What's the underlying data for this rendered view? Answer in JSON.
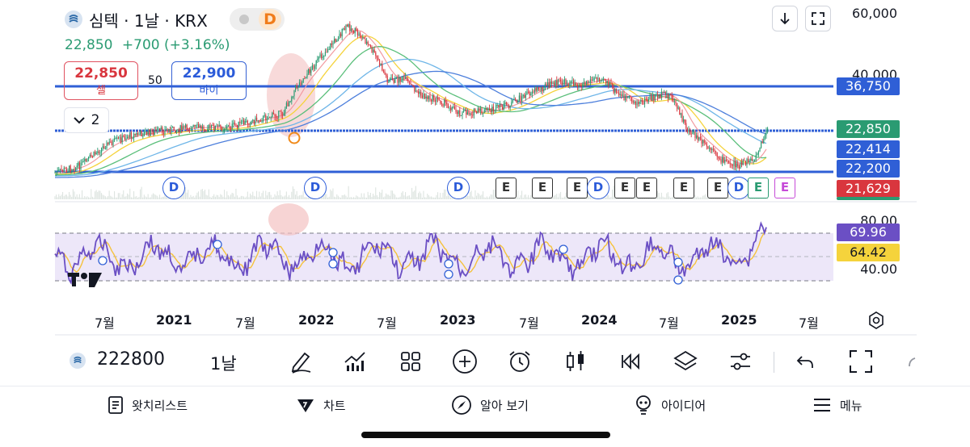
{
  "header": {
    "title": "심텍 · 1날 · KRX",
    "flag_badge": "D",
    "price": "22,850",
    "change": "+700 (+3.16%)",
    "sell_price": "22,850",
    "sell_label": "셀",
    "spread": "50",
    "buy_price": "22,900",
    "buy_label": "바이",
    "indicator_count": "2"
  },
  "price_scale": {
    "top": "60,000",
    "mid": "40,000",
    "tags": [
      {
        "label": "36,750",
        "color": "#2f5fd6"
      },
      {
        "label": "22,850",
        "color": "#2a9b72"
      },
      {
        "label": "22,414",
        "color": "#2f5fd6"
      },
      {
        "label": "22,200",
        "color": "#2f5fd6"
      },
      {
        "label": "21,629",
        "color": "#d9363e"
      }
    ]
  },
  "rsi": {
    "scale_80": "80.00",
    "scale_40": "40.00",
    "rsi_value": "69.96",
    "rsi_color": "#6b4fc4",
    "ma_value": "64.42",
    "ma_color": "#f5d33c"
  },
  "events": {
    "dividend_label": "D",
    "earnings_label": "E"
  },
  "time_axis": [
    "7월",
    "2021",
    "7월",
    "2022",
    "7월",
    "2023",
    "7월",
    "2024",
    "7월",
    "2025",
    "7월"
  ],
  "toolbar": {
    "symbol": "222800",
    "timeframe": "1날"
  },
  "bottom_nav": [
    {
      "label": "왓치리스트",
      "icon": "watchlist-icon"
    },
    {
      "label": "차트",
      "icon": "chart-icon"
    },
    {
      "label": "알아 보기",
      "icon": "explore-icon"
    },
    {
      "label": "아이디어",
      "icon": "ideas-icon"
    },
    {
      "label": "메뉴",
      "icon": "menu-icon"
    }
  ]
}
